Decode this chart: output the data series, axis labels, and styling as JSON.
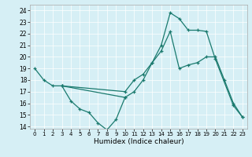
{
  "title": "",
  "xlabel": "Humidex (Indice chaleur)",
  "ylabel": "",
  "background_color": "#d6eff5",
  "line_color": "#1a7a6e",
  "xlim": [
    -0.5,
    23.5
  ],
  "ylim": [
    13.8,
    24.5
  ],
  "yticks": [
    14,
    15,
    16,
    17,
    18,
    19,
    20,
    21,
    22,
    23,
    24
  ],
  "xticks": [
    0,
    1,
    2,
    3,
    4,
    5,
    6,
    7,
    8,
    9,
    10,
    11,
    12,
    13,
    14,
    15,
    16,
    17,
    18,
    19,
    20,
    21,
    22,
    23
  ],
  "series": [
    {
      "x": [
        0,
        1,
        2,
        3,
        10,
        11,
        12,
        13,
        14,
        15,
        16,
        17,
        18,
        19,
        20,
        21,
        22,
        23
      ],
      "y": [
        19,
        18,
        17.5,
        17.5,
        17,
        18,
        18.5,
        19.5,
        20.5,
        22.2,
        19,
        19.3,
        19.5,
        20,
        20,
        18,
        16,
        14.8
      ]
    },
    {
      "x": [
        3,
        4,
        5,
        6,
        7,
        8,
        9,
        10
      ],
      "y": [
        17.5,
        16.2,
        15.5,
        15.2,
        14.3,
        13.7,
        14.6,
        16.5
      ]
    },
    {
      "x": [
        3,
        10,
        11,
        12,
        13,
        14,
        15,
        16,
        17,
        18,
        19,
        20,
        22,
        23
      ],
      "y": [
        17.5,
        16.5,
        17,
        18,
        19.5,
        21,
        23.8,
        23.3,
        22.3,
        22.3,
        22.2,
        19.8,
        15.8,
        14.8
      ]
    }
  ]
}
